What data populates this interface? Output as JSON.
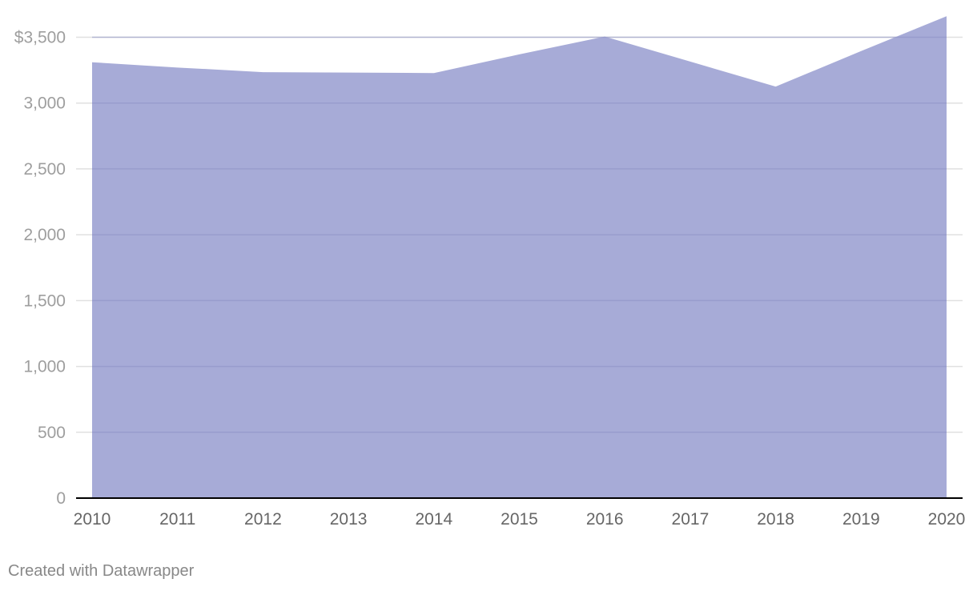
{
  "chart_data": {
    "type": "area",
    "x": [
      2010,
      2011,
      2012,
      2013,
      2014,
      2015,
      2016,
      2017,
      2018,
      2019,
      2020
    ],
    "x_tick_labels": [
      "2010",
      "2011",
      "2012",
      "2013",
      "2014",
      "2015",
      "2016",
      "2017",
      "2018",
      "2019",
      "2020"
    ],
    "series": [
      {
        "values": [
          3310,
          3270,
          3235,
          3232,
          3228,
          3370,
          3505,
          3315,
          3125,
          3395,
          3660
        ],
        "color": "#a7abd7"
      }
    ],
    "ylim": [
      0,
      3500
    ],
    "y_ticks": [
      0,
      500,
      1000,
      1500,
      2000,
      2500,
      3000,
      3500
    ],
    "y_tick_labels": [
      "0",
      "500",
      "1,000",
      "1,500",
      "2,000",
      "2,500",
      "3,000",
      "$3,500"
    ],
    "grid": true,
    "colors": {
      "area": "#a7abd7",
      "gridline": "#e0e0e0",
      "baseline": "#000000",
      "y_tick_text": "#9e9e9e",
      "x_tick_text": "#666666"
    }
  },
  "footer": {
    "credit": "Created with Datawrapper"
  }
}
